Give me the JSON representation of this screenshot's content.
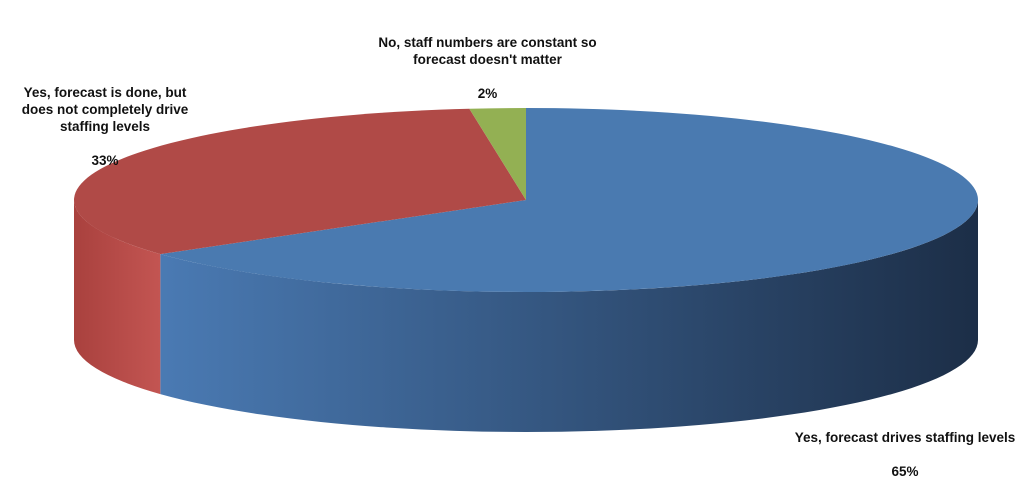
{
  "chart_data": {
    "type": "pie",
    "style": "3d",
    "title": "",
    "slices": [
      {
        "label": "Yes, forecast drives staffing levels",
        "value": 65,
        "value_label": "65%",
        "color": "#4a7ab0"
      },
      {
        "label": "Yes, forecast is done, but does not completely drive staffing levels",
        "value": 33,
        "value_label": "33%",
        "color": "#b04a47"
      },
      {
        "label": "No, staff numbers are constant so forecast doesn't matter",
        "value": 2,
        "value_label": "2%",
        "color": "#93b053"
      }
    ],
    "legend": "none"
  }
}
